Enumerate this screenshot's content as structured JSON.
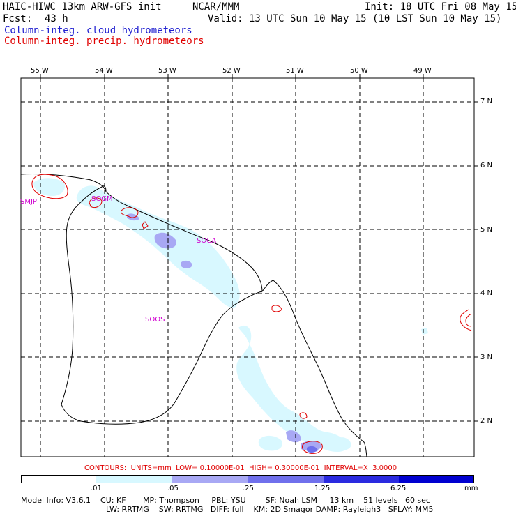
{
  "header": {
    "model": "HAIC-HIWC 13km ARW-GFS init",
    "org": "NCAR/MMM",
    "init": "Init: 18 UTC Fri 08 May 15",
    "fcst_label": "Fcst:",
    "fcst_value": "43 h",
    "valid": "Valid: 13 UTC Sun 10 May 15 (10 LST Sun 10 May 15)",
    "field1": "Column-integ. cloud hydrometeors",
    "field2": "Column-integ. precip. hydrometeors"
  },
  "colors": {
    "field1": "#2020d0",
    "field2": "#e00000",
    "station": "#d000d0",
    "shade_1": "#d8f8ff",
    "shade_2": "#a8a8f4",
    "shade_3": "#7070ec",
    "shade_4": "#2a2ae0",
    "shade_5": "#0000d0"
  },
  "map": {
    "lon_labels": [
      "55 W",
      "54 W",
      "53 W",
      "52 W",
      "51 W",
      "50 W",
      "49 W"
    ],
    "lat_labels": [
      "7 N",
      "6 N",
      "5 N",
      "4 N",
      "3 N",
      "2 N"
    ],
    "stations": [
      "SMJP",
      "SOGM",
      "SOCA",
      "SOOS"
    ]
  },
  "contour_info": "CONTOURS:  UNITS=mm  LOW= 0.10000E-01  HIGH= 0.30000E-01  INTERVAL=X  3.0000",
  "colorbar": {
    "levels": [
      ".01",
      ".05",
      ".25",
      "1.25",
      "6.25"
    ],
    "units": "mm"
  },
  "footer": {
    "line1": "Model Info: V3.6.1    CU: KF       MP: Thompson     PBL: YSU        SF: Noah LSM     13 km    51 levels   60 sec",
    "line2": "LW: RRTMG    SW: RRTMG   DIFF: full    KM: 2D Smagor DAMP: Rayleigh3   SFLAY: MM5"
  }
}
